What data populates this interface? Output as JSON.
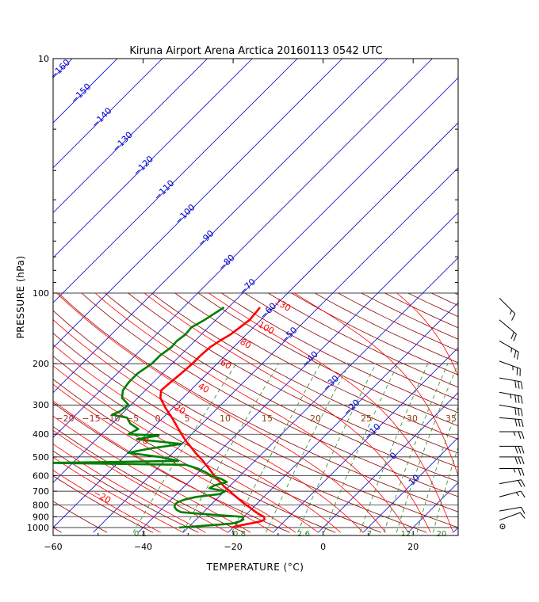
{
  "colors": {
    "temperature": "#ff0000",
    "dewpoint": "#008000",
    "isotherm": "#0000cc",
    "dry_adiabat": "#8b0000",
    "moist_adiabat": "#ff0000",
    "mixing_ratio": "#228b22",
    "isobar": "#000000",
    "wind_barb": "#000000"
  },
  "chart_data": {
    "type": "skew-t",
    "title": "Kiruna Airport Arena Arctica 20160113 0542 UTC",
    "xlabel": "TEMPERATURE (°C)",
    "ylabel": "PRESSURE  (hPa)",
    "xlim": [
      -60,
      30
    ],
    "ylim": [
      1050,
      10
    ],
    "x_ticks": [
      "−60",
      "−40",
      "−20",
      "0",
      "20"
    ],
    "x_tick_values": [
      -60,
      -40,
      -20,
      0,
      20
    ],
    "y_tick_labels": [
      "10",
      "100",
      "200",
      "300",
      "400",
      "500",
      "600",
      "700",
      "800",
      "900",
      "1000"
    ],
    "y_tick_values": [
      10,
      100,
      200,
      300,
      400,
      500,
      600,
      700,
      800,
      900,
      1000
    ],
    "y_scale": "log",
    "grid": true,
    "isotherm_labels": [
      "−160",
      "−150",
      "−140",
      "−130",
      "−120",
      "−110",
      "−100",
      "−90",
      "−80",
      "−70",
      "−60",
      "−50",
      "−40",
      "−30",
      "−20",
      "−10",
      "0",
      "10"
    ],
    "isotherm_values": [
      -160,
      -150,
      -140,
      -130,
      -120,
      -110,
      -100,
      -90,
      -80,
      -70,
      -60,
      -50,
      -40,
      -30,
      -20,
      -10,
      0,
      10
    ],
    "dry_adiabat_labels": [
      "130",
      "100",
      "80",
      "60",
      "40",
      "20",
      "0",
      "−20"
    ],
    "dry_adiabat_values": [
      130,
      100,
      80,
      60,
      40,
      20,
      0,
      -20
    ],
    "moist_adiabat_labels": [
      "−20",
      "−15",
      "−10",
      "−5",
      "0",
      "5",
      "10",
      "15",
      "20",
      "25",
      "30",
      "35"
    ],
    "moist_adiabat_values": [
      -20,
      -15,
      -10,
      -5,
      0,
      5,
      10,
      15,
      20,
      25,
      30,
      35
    ],
    "mixing_ratio_labels": [
      "0.1",
      "0.8",
      "2.6",
      "7",
      "12",
      "20"
    ],
    "mixing_ratio_values": [
      0.1,
      0.8,
      2.6,
      7,
      12,
      20
    ],
    "series": [
      {
        "name": "Temperature",
        "pressure": [
          1000,
          975,
          960,
          940,
          925,
          900,
          880,
          850,
          820,
          800,
          780,
          750,
          720,
          700,
          670,
          640,
          600,
          570,
          540,
          520,
          500,
          480,
          450,
          430,
          400,
          370,
          340,
          310,
          280,
          260,
          240,
          220,
          200,
          185,
          170,
          160,
          150,
          140,
          130,
          120,
          115
        ],
        "values": [
          -20.3,
          -18.5,
          -17,
          -15.2,
          -14.8,
          -15.5,
          -17,
          -19,
          -20.8,
          -22.2,
          -23.5,
          -25.5,
          -27.5,
          -28.8,
          -31,
          -33,
          -35.8,
          -37.8,
          -40,
          -41.5,
          -43.2,
          -45,
          -47.6,
          -49.5,
          -52.2,
          -55,
          -58,
          -61.5,
          -65,
          -66.5,
          -66.2,
          -65.8,
          -65.5,
          -65.5,
          -65.2,
          -64.5,
          -63.5,
          -63,
          -62.5,
          -62.8,
          -63
        ]
      },
      {
        "name": "Dewpoint",
        "pressure": [
          1000,
          975,
          960,
          940,
          925,
          900,
          880,
          860,
          840,
          820,
          800,
          780,
          760,
          740,
          720,
          700,
          680,
          660,
          640,
          620,
          600,
          580,
          560,
          540,
          530,
          520,
          500,
          480,
          460,
          440,
          420,
          405,
          400,
          380,
          360,
          340,
          330,
          320,
          300,
          280,
          260,
          240,
          220,
          200,
          185,
          170,
          160,
          150,
          140,
          130,
          120,
          115
        ],
        "values": [
          -32,
          -24.5,
          -21,
          -19.8,
          -19.5,
          -20.2,
          -28,
          -35,
          -36.5,
          -37.5,
          -38,
          -38,
          -37,
          -35,
          -30.5,
          -29.8,
          -34,
          -33.5,
          -31.5,
          -33.5,
          -36.5,
          -38.5,
          -41,
          -44.5,
          -75,
          -47,
          -52,
          -60,
          -56,
          -50,
          -61,
          -57,
          -64,
          -63,
          -66,
          -68,
          -72,
          -71,
          -70.5,
          -73.5,
          -75,
          -75.5,
          -75.5,
          -74.5,
          -74.5,
          -73.8,
          -74,
          -73.5,
          -73.8,
          -72.5,
          -71.5,
          -71
        ]
      }
    ],
    "wind": {
      "pressure": [
        990,
        930,
        850,
        740,
        650,
        560,
        500,
        450,
        390,
        340,
        300,
        265,
        230,
        195,
        160,
        130,
        105
      ],
      "speed_kt": [
        0,
        10,
        10,
        15,
        20,
        25,
        30,
        30,
        25,
        30,
        30,
        35,
        30,
        25,
        25,
        20,
        15
      ],
      "direction_deg": [
        0,
        250,
        260,
        255,
        260,
        270,
        270,
        270,
        270,
        275,
        280,
        280,
        280,
        290,
        300,
        310,
        315
      ]
    }
  }
}
